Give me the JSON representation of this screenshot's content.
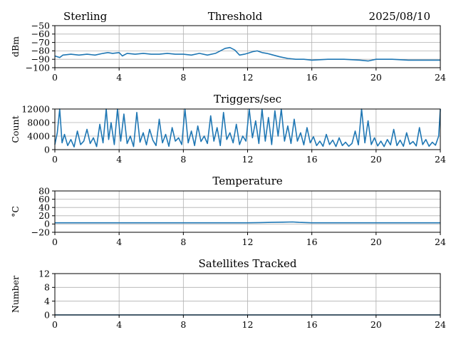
{
  "header": {
    "left": "Sterling",
    "center": "Threshold",
    "right": "2025/08/10"
  },
  "colors": {
    "line": "#1f77b4",
    "grid": "#b0b0b0",
    "axis": "#000000"
  },
  "chart_data": [
    {
      "type": "line",
      "title": "",
      "ylabel": "dBm",
      "xlim": [
        0,
        24
      ],
      "ylim": [
        -100,
        -50
      ],
      "xticks": [
        0,
        4,
        8,
        12,
        16,
        20,
        24
      ],
      "yticks": [
        -100,
        -90,
        -80,
        -70,
        -60,
        -50
      ],
      "ytick_labels": [
        "−100",
        "−90",
        "−80",
        "−70",
        "−60",
        "−50"
      ],
      "grid": true,
      "series": [
        {
          "x": [
            0,
            0.3,
            0.5,
            1,
            1.5,
            2,
            2.5,
            3,
            3.3,
            3.6,
            4,
            4.2,
            4.5,
            5,
            5.5,
            6,
            6.5,
            7,
            7.5,
            8,
            8.5,
            9,
            9.5,
            10,
            10.3,
            10.6,
            10.9,
            11.2,
            11.5,
            11.8,
            12,
            12.3,
            12.6,
            12.9,
            13.2,
            13.6,
            14,
            14.5,
            15,
            15.5,
            16,
            17,
            18,
            19,
            19.5,
            20,
            21,
            22,
            23,
            24
          ],
          "y": [
            -86,
            -88,
            -85,
            -84,
            -85,
            -84,
            -85,
            -83,
            -82,
            -83,
            -82,
            -86,
            -83,
            -84,
            -83,
            -84,
            -84,
            -83,
            -84,
            -84,
            -85,
            -83,
            -85,
            -83,
            -80,
            -77,
            -76,
            -79,
            -85,
            -84,
            -83,
            -81,
            -80,
            -82,
            -83,
            -85,
            -87,
            -89,
            -90,
            -90,
            -91,
            -90,
            -90,
            -91,
            -92,
            -90,
            -90,
            -91,
            -91,
            -91
          ]
        }
      ]
    },
    {
      "type": "line",
      "title": "Triggers/sec",
      "ylabel": "Count",
      "xlim": [
        0,
        24
      ],
      "ylim": [
        0,
        12000
      ],
      "xticks": [
        0,
        4,
        8,
        12,
        16,
        20,
        24
      ],
      "yticks": [
        0,
        4000,
        8000,
        12000
      ],
      "ytick_labels": [
        "0",
        "4000",
        "8000",
        "12000"
      ],
      "grid": true,
      "series": [
        {
          "x": [
            0,
            0.15,
            0.3,
            0.45,
            0.6,
            0.8,
            1.0,
            1.2,
            1.4,
            1.6,
            1.8,
            2.0,
            2.2,
            2.4,
            2.6,
            2.8,
            3.0,
            3.2,
            3.35,
            3.5,
            3.7,
            3.9,
            4.1,
            4.3,
            4.5,
            4.7,
            4.9,
            5.1,
            5.3,
            5.5,
            5.7,
            5.9,
            6.1,
            6.3,
            6.5,
            6.7,
            6.9,
            7.1,
            7.3,
            7.5,
            7.7,
            7.9,
            8.1,
            8.3,
            8.5,
            8.7,
            8.9,
            9.1,
            9.3,
            9.5,
            9.7,
            9.9,
            10.1,
            10.3,
            10.5,
            10.7,
            10.9,
            11.1,
            11.3,
            11.5,
            11.7,
            11.9,
            12.1,
            12.3,
            12.5,
            12.7,
            12.9,
            13.1,
            13.3,
            13.5,
            13.7,
            13.9,
            14.1,
            14.3,
            14.5,
            14.7,
            14.9,
            15.1,
            15.3,
            15.5,
            15.7,
            15.9,
            16.1,
            16.3,
            16.5,
            16.7,
            16.9,
            17.1,
            17.3,
            17.5,
            17.7,
            17.9,
            18.1,
            18.3,
            18.5,
            18.7,
            18.9,
            19.1,
            19.3,
            19.5,
            19.7,
            19.9,
            20.1,
            20.3,
            20.5,
            20.7,
            20.9,
            21.1,
            21.3,
            21.5,
            21.7,
            21.9,
            22.1,
            22.3,
            22.5,
            22.7,
            22.9,
            23.1,
            23.3,
            23.5,
            23.7,
            23.9,
            24
          ],
          "y": [
            1500,
            5000,
            12000,
            2000,
            4500,
            1200,
            3000,
            800,
            5500,
            1500,
            2500,
            6000,
            1800,
            3500,
            900,
            7500,
            2000,
            12000,
            3000,
            8000,
            1500,
            12000,
            2500,
            10500,
            1800,
            4000,
            900,
            11000,
            2200,
            5000,
            1400,
            6000,
            2800,
            1200,
            9000,
            2000,
            4500,
            1000,
            6500,
            2500,
            3500,
            1500,
            12000,
            2000,
            5500,
            1200,
            7000,
            2400,
            4000,
            1800,
            10000,
            2500,
            6500,
            1200,
            11000,
            3000,
            5000,
            2000,
            7500,
            1500,
            4000,
            2500,
            12000,
            3500,
            8500,
            1800,
            12000,
            2500,
            9500,
            1500,
            11500,
            4000,
            12000,
            2500,
            7000,
            1800,
            9000,
            2500,
            5000,
            1400,
            6500,
            2000,
            3800,
            1200,
            2500,
            1000,
            4500,
            1500,
            2800,
            900,
            3500,
            1200,
            2200,
            1000,
            1800,
            5500,
            1400,
            12000,
            2000,
            8500,
            1500,
            3500,
            1100,
            2500,
            900,
            3000,
            1400,
            6000,
            1200,
            2800,
            1000,
            5000,
            1600,
            2400,
            1100,
            6500,
            1500,
            3000,
            1000,
            2200,
            1300,
            4000,
            12000
          ]
        }
      ]
    },
    {
      "type": "line",
      "title": "Temperature",
      "ylabel": "°C",
      "xlim": [
        0,
        24
      ],
      "ylim": [
        -20,
        80
      ],
      "xticks": [
        0,
        4,
        8,
        12,
        16,
        20,
        24
      ],
      "yticks": [
        -20,
        0,
        20,
        40,
        60,
        80
      ],
      "ytick_labels": [
        "−20",
        "0",
        "20",
        "40",
        "60",
        "80"
      ],
      "grid": true,
      "series": [
        {
          "x": [
            0,
            4,
            8,
            12,
            12.8,
            13.5,
            14.2,
            14.8,
            15.2,
            16,
            20,
            24
          ],
          "y": [
            3,
            3,
            3,
            3,
            3.5,
            4,
            4.5,
            5,
            4,
            3,
            3,
            3
          ]
        }
      ]
    },
    {
      "type": "line",
      "title": "Satellites Tracked",
      "ylabel": "Number",
      "xlim": [
        0,
        24
      ],
      "ylim": [
        0,
        12
      ],
      "xticks": [
        0,
        4,
        8,
        12,
        16,
        20,
        24
      ],
      "yticks": [
        0,
        4,
        8,
        12
      ],
      "ytick_labels": [
        "0",
        "4",
        "8",
        "12"
      ],
      "grid": true,
      "series": [
        {
          "x": [
            0,
            24
          ],
          "y": [
            0,
            0
          ]
        }
      ]
    }
  ]
}
